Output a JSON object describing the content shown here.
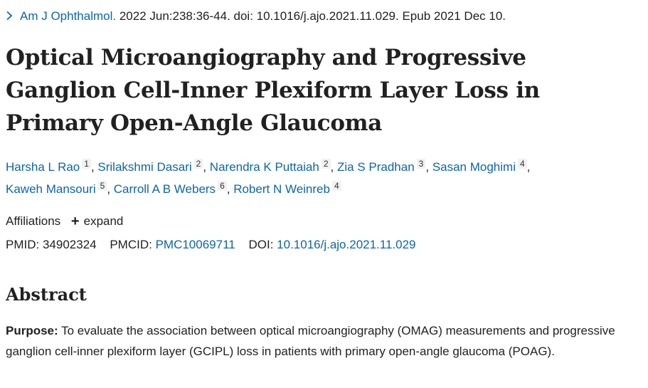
{
  "citation": {
    "journal": "Am J Ophthalmol.",
    "details": " 2022 Jun:238:36-44. doi: 10.1016/j.ajo.2021.11.029. Epub 2021 Dec 10."
  },
  "title": "Optical Microangiography and Progressive Ganglion Cell-Inner Plexiform Layer Loss in Primary Open-Angle Glaucoma",
  "authors": [
    {
      "name": "Harsha L Rao",
      "aff": "1"
    },
    {
      "name": "Srilakshmi Dasari",
      "aff": "2"
    },
    {
      "name": "Narendra K Puttaiah",
      "aff": "2"
    },
    {
      "name": "Zia S Pradhan",
      "aff": "3"
    },
    {
      "name": "Sasan Moghimi",
      "aff": "4"
    },
    {
      "name": "Kaweh Mansouri",
      "aff": "5"
    },
    {
      "name": "Carroll A B Webers",
      "aff": "6"
    },
    {
      "name": "Robert N Weinreb",
      "aff": "4"
    }
  ],
  "affiliations": {
    "label": "Affiliations",
    "expand_label": "expand"
  },
  "ids": {
    "pmid_label": "PMID:",
    "pmid": "34902324",
    "pmcid_label": "PMCID:",
    "pmcid": "PMC10069711",
    "doi_label": "DOI:",
    "doi": "10.1016/j.ajo.2021.11.029"
  },
  "abstract": {
    "heading": "Abstract",
    "purpose_label": "Purpose:",
    "purpose_text": " To evaluate the association between optical microangiography (OMAG) measurements and progressive ganglion cell-inner plexiform layer (GCIPL) loss in patients with primary open-angle glaucoma (POAG)."
  },
  "colors": {
    "link": "#0b65b0",
    "text": "#212121"
  }
}
